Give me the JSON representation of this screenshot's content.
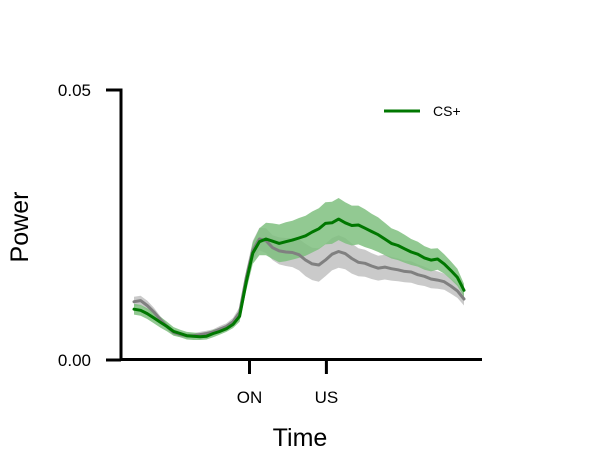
{
  "chart_data": {
    "type": "line",
    "title": "",
    "xlabel": "Time",
    "ylabel": "Power",
    "ylim": [
      0,
      0.05
    ],
    "y_ticks": [
      {
        "value": 0.0,
        "label": "0.00"
      },
      {
        "value": 0.05,
        "label": "0.05"
      }
    ],
    "x_ticks": [
      {
        "position": 0.35,
        "label": "ON"
      },
      {
        "position": 0.583,
        "label": "US"
      }
    ],
    "x": [
      0,
      0.02,
      0.04,
      0.06,
      0.08,
      0.1,
      0.12,
      0.14,
      0.16,
      0.18,
      0.2,
      0.22,
      0.24,
      0.26,
      0.28,
      0.3,
      0.32,
      0.34,
      0.36,
      0.38,
      0.4,
      0.42,
      0.44,
      0.46,
      0.48,
      0.5,
      0.52,
      0.54,
      0.56,
      0.58,
      0.6,
      0.62,
      0.64,
      0.66,
      0.68,
      0.7,
      0.72,
      0.74,
      0.76,
      0.78,
      0.8,
      0.82,
      0.84,
      0.86,
      0.88,
      0.9,
      0.92,
      0.94,
      0.96,
      0.98,
      1.0
    ],
    "grid": false,
    "legend": {
      "placement": "top-right",
      "entries": [
        {
          "name": "CS+",
          "color": "#007700"
        }
      ]
    },
    "series": [
      {
        "name": "CS+",
        "color": "#007700",
        "band_color": "#7fbf7f",
        "values": [
          0.0094,
          0.0092,
          0.0086,
          0.0078,
          0.007,
          0.0062,
          0.0053,
          0.0049,
          0.0045,
          0.0044,
          0.0043,
          0.0044,
          0.0049,
          0.0053,
          0.0058,
          0.0066,
          0.0081,
          0.0144,
          0.0198,
          0.0219,
          0.0224,
          0.022,
          0.0216,
          0.0219,
          0.0222,
          0.0226,
          0.023,
          0.0237,
          0.0243,
          0.0253,
          0.0254,
          0.0261,
          0.0254,
          0.0249,
          0.025,
          0.0244,
          0.0238,
          0.0232,
          0.0224,
          0.0216,
          0.0212,
          0.0206,
          0.02,
          0.0196,
          0.0189,
          0.0185,
          0.0187,
          0.0178,
          0.0166,
          0.0153,
          0.0129
        ],
        "lower": [
          0.0084,
          0.0082,
          0.0076,
          0.0068,
          0.006,
          0.0053,
          0.0045,
          0.0042,
          0.0038,
          0.0037,
          0.0037,
          0.0038,
          0.0042,
          0.0047,
          0.0052,
          0.0059,
          0.0071,
          0.0128,
          0.0178,
          0.0194,
          0.0194,
          0.0187,
          0.0181,
          0.0183,
          0.0186,
          0.0189,
          0.0193,
          0.0199,
          0.0205,
          0.0214,
          0.0215,
          0.0222,
          0.0216,
          0.0212,
          0.0214,
          0.0209,
          0.0205,
          0.02,
          0.0194,
          0.0188,
          0.0185,
          0.018,
          0.0176,
          0.0173,
          0.0167,
          0.0164,
          0.0167,
          0.016,
          0.0149,
          0.0137,
          0.0117
        ],
        "upper": [
          0.0104,
          0.0102,
          0.0096,
          0.0088,
          0.008,
          0.0071,
          0.0061,
          0.0056,
          0.0052,
          0.0051,
          0.0049,
          0.005,
          0.0056,
          0.0059,
          0.0064,
          0.0073,
          0.0091,
          0.016,
          0.0218,
          0.0244,
          0.0254,
          0.0253,
          0.0251,
          0.0255,
          0.0258,
          0.0263,
          0.0267,
          0.0275,
          0.0281,
          0.0292,
          0.0293,
          0.03,
          0.0292,
          0.0286,
          0.0286,
          0.0279,
          0.0271,
          0.0264,
          0.0254,
          0.0244,
          0.0239,
          0.0232,
          0.0224,
          0.0219,
          0.0211,
          0.0206,
          0.0207,
          0.0196,
          0.0183,
          0.0169,
          0.0141
        ]
      },
      {
        "color": "#808080",
        "band_color": "#c4c4c4",
        "values": [
          0.0108,
          0.011,
          0.0101,
          0.0089,
          0.0075,
          0.0062,
          0.0051,
          0.0047,
          0.0045,
          0.0045,
          0.0047,
          0.0049,
          0.0052,
          0.0057,
          0.0062,
          0.0071,
          0.0088,
          0.0152,
          0.0203,
          0.0224,
          0.0221,
          0.0208,
          0.0202,
          0.02,
          0.0199,
          0.0195,
          0.0185,
          0.0178,
          0.0176,
          0.0185,
          0.0196,
          0.0201,
          0.0197,
          0.0188,
          0.0181,
          0.0179,
          0.0174,
          0.017,
          0.0172,
          0.0169,
          0.0167,
          0.0164,
          0.0163,
          0.0158,
          0.0155,
          0.015,
          0.0148,
          0.0145,
          0.0137,
          0.0128,
          0.0113
        ],
        "lower": [
          0.0099,
          0.0101,
          0.0092,
          0.0081,
          0.0069,
          0.0056,
          0.0046,
          0.0042,
          0.004,
          0.004,
          0.0042,
          0.0044,
          0.0047,
          0.0051,
          0.0056,
          0.0064,
          0.0078,
          0.0138,
          0.0185,
          0.0203,
          0.0198,
          0.0185,
          0.0177,
          0.0174,
          0.0172,
          0.0166,
          0.0155,
          0.0148,
          0.0145,
          0.0155,
          0.0166,
          0.0171,
          0.0168,
          0.016,
          0.0155,
          0.0154,
          0.015,
          0.0147,
          0.0149,
          0.0147,
          0.0146,
          0.0144,
          0.0143,
          0.0139,
          0.0137,
          0.0133,
          0.0132,
          0.013,
          0.0123,
          0.0115,
          0.0101
        ],
        "upper": [
          0.0117,
          0.0119,
          0.011,
          0.0097,
          0.0081,
          0.0068,
          0.0056,
          0.0052,
          0.005,
          0.005,
          0.0052,
          0.0054,
          0.0057,
          0.0063,
          0.0068,
          0.0078,
          0.0098,
          0.0166,
          0.0221,
          0.0245,
          0.0244,
          0.0231,
          0.0227,
          0.0226,
          0.0226,
          0.0224,
          0.0215,
          0.0208,
          0.0207,
          0.0215,
          0.0226,
          0.0231,
          0.0226,
          0.0216,
          0.0207,
          0.0204,
          0.0198,
          0.0193,
          0.0195,
          0.0191,
          0.0188,
          0.0184,
          0.0183,
          0.0177,
          0.0173,
          0.0167,
          0.0164,
          0.016,
          0.0151,
          0.0141,
          0.0125
        ]
      }
    ]
  }
}
